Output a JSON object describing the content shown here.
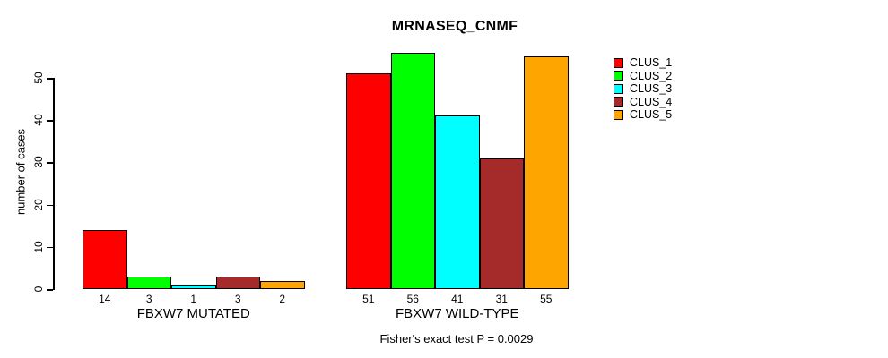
{
  "chart_data": {
    "type": "bar",
    "title": "MRNASEQ_CNMF",
    "ylabel": "number of cases",
    "xlabel": "",
    "categories": [
      "FBXW7 MUTATED",
      "FBXW7 WILD-TYPE"
    ],
    "series": [
      {
        "name": "CLUS_1",
        "color": "#ff0000",
        "values": [
          14,
          51
        ]
      },
      {
        "name": "CLUS_2",
        "color": "#00ff00",
        "values": [
          3,
          56
        ]
      },
      {
        "name": "CLUS_3",
        "color": "#00ffff",
        "values": [
          1,
          41
        ]
      },
      {
        "name": "CLUS_4",
        "color": "#a52a2a",
        "values": [
          3,
          31
        ]
      },
      {
        "name": "CLUS_5",
        "color": "#ffa500",
        "values": [
          2,
          55
        ]
      }
    ],
    "yticks": [
      0,
      10,
      20,
      30,
      40,
      50
    ],
    "ylim": [
      0,
      56
    ],
    "bar_value_labels_shown": true,
    "grid": false,
    "legend_position": "right",
    "legend_entries": [
      "CLUS_1",
      "CLUS_2",
      "CLUS_3",
      "CLUS_4",
      "CLUS_5"
    ],
    "annotation": "Fisher's exact test P = 0.0029",
    "axis_color": "#000000",
    "bar_border_color": "#000000"
  }
}
